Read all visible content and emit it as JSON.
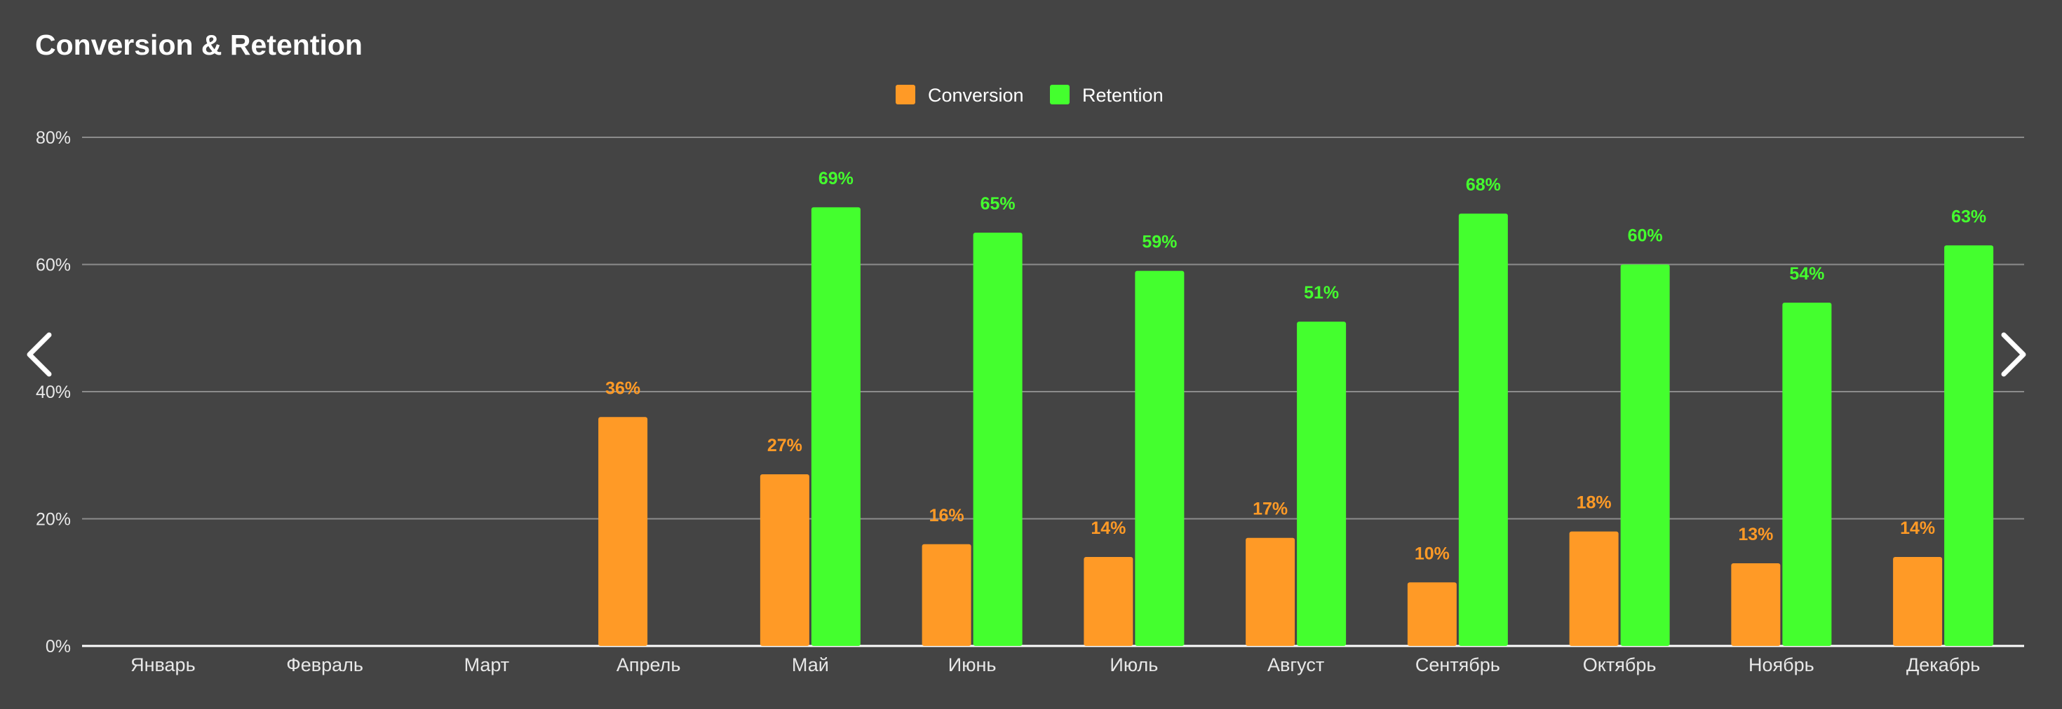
{
  "chart_data": {
    "type": "bar",
    "title": "Conversion & Retention",
    "xlabel": "",
    "ylabel": "",
    "ylim": [
      0,
      80
    ],
    "yticks": [
      "0%",
      "20%",
      "40%",
      "60%",
      "80%"
    ],
    "legend_position": "top-center",
    "categories": [
      "Январь",
      "Февраль",
      "Март",
      "Апрель",
      "Май",
      "Июнь",
      "Июль",
      "Август",
      "Сентябрь",
      "Октябрь",
      "Ноябрь",
      "Декабрь"
    ],
    "series": [
      {
        "name": "Conversion",
        "color": "#ff9a26",
        "values": [
          null,
          null,
          null,
          36,
          27,
          16,
          14,
          17,
          10,
          18,
          13,
          14
        ],
        "labels": [
          "",
          "",
          "",
          "36%",
          "27%",
          "16%",
          "14%",
          "17%",
          "10%",
          "18%",
          "13%",
          "14%"
        ]
      },
      {
        "name": "Retention",
        "color": "#44ff2e",
        "values": [
          null,
          null,
          null,
          null,
          69,
          65,
          59,
          51,
          68,
          60,
          54,
          63
        ],
        "labels": [
          "",
          "",
          "",
          "",
          "69%",
          "65%",
          "59%",
          "51%",
          "68%",
          "60%",
          "54%",
          "63%"
        ]
      }
    ],
    "grid": true
  },
  "navigation": {
    "prev_icon": "chevron-left-icon",
    "next_icon": "chevron-right-icon"
  }
}
